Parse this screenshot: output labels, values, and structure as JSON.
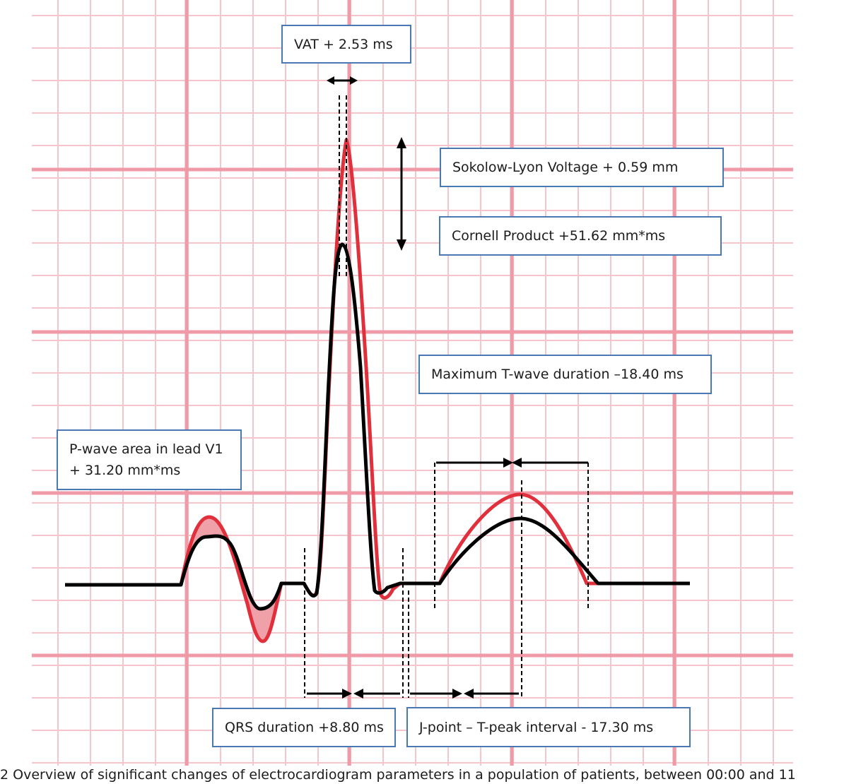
{
  "labels": {
    "vat": "VAT + 2.53 ms",
    "sokolow": "Sokolow-Lyon Voltage + 0.59 mm",
    "cornell": "Cornell Product +51.62 mm*ms",
    "t_wave": "Maximum T-wave duration –18.40 ms",
    "p_wave_line1": "P-wave area in lead V1",
    "p_wave_line2": "+ 31.20 mm*ms",
    "qrs": "QRS duration +8.80 ms",
    "jpoint": "J-point – T-peak interval - 17.30 ms"
  },
  "caption": "2   Overview of significant changes of electrocardiogram parameters in a population of patients, between 00:00 and 11",
  "colors": {
    "grid_minor": "#f4c6cc",
    "grid_major": "#ef9aa6",
    "trace_red": "#e0303c",
    "trace_red_fill": "#f0a0a8",
    "trace_black": "#000000",
    "box_border": "#4a78b3"
  }
}
